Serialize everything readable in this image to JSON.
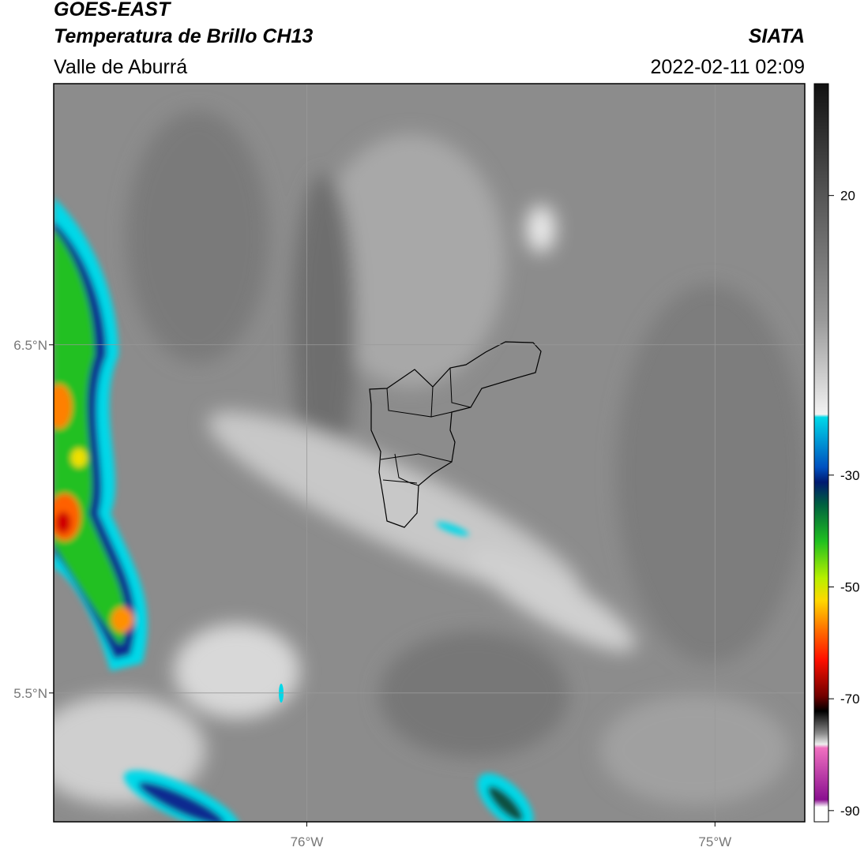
{
  "header": {
    "title": "GOES-EAST",
    "subtitle": "Temperatura de Brillo CH13",
    "region": "Valle de Aburrá",
    "source": "SIATA",
    "datetime": "2022-02-11 02:09"
  },
  "map": {
    "xlim": [
      -76.62,
      -74.78
    ],
    "ylim": [
      5.13,
      7.25
    ],
    "xticks": [
      {
        "value": -76,
        "label": "76°W"
      },
      {
        "value": -75,
        "label": "75°W"
      }
    ],
    "yticks": [
      {
        "value": 6.5,
        "label": "6.5°N"
      },
      {
        "value": 5.5,
        "label": "5.5°N"
      }
    ]
  },
  "colorbar": {
    "lim": [
      -92,
      40
    ],
    "ticks": [
      20,
      -30,
      -50,
      -70,
      -90
    ]
  }
}
